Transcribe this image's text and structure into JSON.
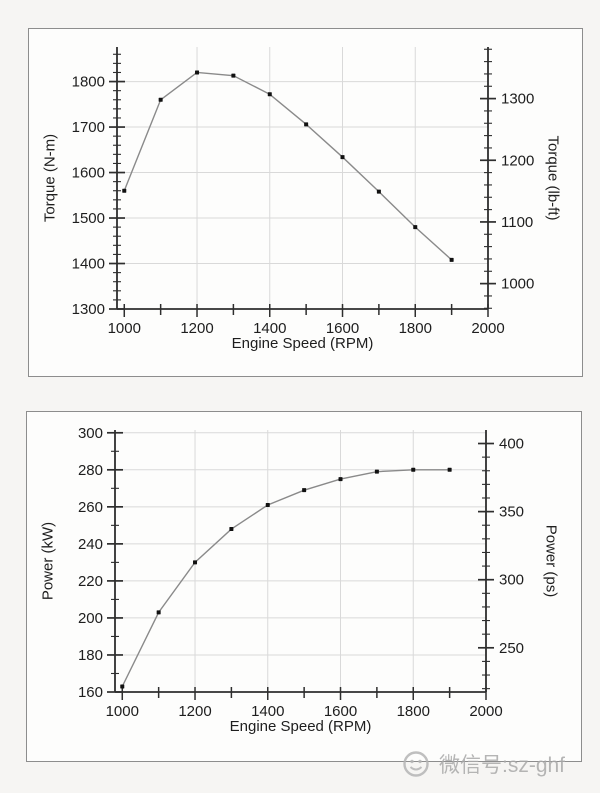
{
  "page": {
    "background": "#f6f5f3"
  },
  "watermark": {
    "text": "微信号:sz-ghf",
    "color": "#a9a9a9",
    "icon": "wechat-face-icon"
  },
  "colors": {
    "line": "#8a8a8a",
    "marker": "#111111",
    "grid": "#d9d9d9",
    "axis": "#2e2e2e",
    "tick_label": "#1e1e1e",
    "panel_border": "#8d8d8d"
  },
  "chart_data": [
    {
      "name": "torque-curve",
      "type": "line",
      "title": "",
      "xlabel": "Engine Speed (RPM)",
      "ylabel": "Torque (N-m)",
      "ylabel_right": "Torque (lb-ft)",
      "x": [
        1000,
        1100,
        1200,
        1300,
        1400,
        1500,
        1600,
        1700,
        1800,
        1900
      ],
      "series": [
        {
          "name": "Torque",
          "values": [
            1560,
            1760,
            1820,
            1813,
            1772,
            1706,
            1634,
            1558,
            1480,
            1408
          ]
        }
      ],
      "xlim": [
        980,
        2000
      ],
      "ylim": [
        1300,
        1876
      ],
      "x_ticks": {
        "start": 1000,
        "end": 2000,
        "minor_step": 100,
        "label_step": 200
      },
      "y_ticks_left": {
        "major_step": 100,
        "minor_step": 20,
        "label_min": 1300,
        "label_max": 1800
      },
      "y_axis_right": {
        "units_per_left": 0.737562,
        "major_step": 100,
        "minor_step": 20,
        "label_min": 1000,
        "label_max": 1300
      },
      "grid": true,
      "legend": "none"
    },
    {
      "name": "power-curve",
      "type": "line",
      "title": "",
      "xlabel": "Engine Speed (RPM)",
      "ylabel": "Power (kW)",
      "ylabel_right": "Power (ps)",
      "x": [
        1000,
        1100,
        1200,
        1300,
        1400,
        1500,
        1600,
        1700,
        1800,
        1900
      ],
      "series": [
        {
          "name": "Power",
          "values": [
            163,
            203,
            230,
            248,
            261,
            269,
            275,
            279,
            280,
            280
          ]
        }
      ],
      "xlim": [
        980,
        2000
      ],
      "ylim": [
        160,
        301.5
      ],
      "x_ticks": {
        "start": 1000,
        "end": 2000,
        "minor_step": 100,
        "label_step": 200
      },
      "y_ticks_left": {
        "major_step": 20,
        "minor_step": 10,
        "label_min": 160,
        "label_max": 300
      },
      "y_axis_right": {
        "units_per_left": 1.35962,
        "major_step": 50,
        "minor_step": 10,
        "label_min": 250,
        "label_max": 400
      },
      "grid": true,
      "legend": "none"
    }
  ]
}
